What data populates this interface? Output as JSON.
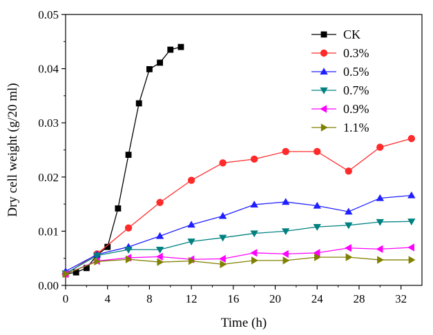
{
  "chart_data": {
    "type": "line",
    "title": "",
    "xlabel": "Time (h)",
    "ylabel": "Dry cell weight (g/20 ml)",
    "xlim": [
      0,
      34
    ],
    "ylim": [
      0,
      0.05
    ],
    "xticks": [
      0,
      4,
      8,
      12,
      16,
      20,
      24,
      28,
      32
    ],
    "xtick_labels": [
      "0",
      "4",
      "8",
      "12",
      "16",
      "20",
      "24",
      "28",
      "32"
    ],
    "yticks": [
      0,
      0.01,
      0.02,
      0.03,
      0.04,
      0.05
    ],
    "ytick_labels": [
      "0.00",
      "0.01",
      "0.02",
      "0.03",
      "0.04",
      "0.05"
    ],
    "legend_position": "top-right",
    "grid": false,
    "series": [
      {
        "name": "CK",
        "color": "#000000",
        "marker": "square",
        "x": [
          0,
          1,
          2,
          3,
          4,
          5,
          6,
          7,
          8,
          9,
          10,
          11
        ],
        "y": [
          0.0021,
          0.0024,
          0.0032,
          0.0056,
          0.0071,
          0.0142,
          0.0241,
          0.0336,
          0.0399,
          0.0411,
          0.0435,
          0.044
        ]
      },
      {
        "name": "0.3%",
        "color": "#ff2a2a",
        "marker": "circle",
        "x": [
          0,
          3,
          6,
          9,
          12,
          15,
          18,
          21,
          24,
          27,
          30,
          33
        ],
        "y": [
          0.0021,
          0.0058,
          0.0106,
          0.0153,
          0.0194,
          0.0226,
          0.0233,
          0.0247,
          0.0247,
          0.0211,
          0.0255,
          0.0271
        ]
      },
      {
        "name": "0.5%",
        "color": "#1f1fff",
        "marker": "triangle-up",
        "x": [
          0,
          3,
          6,
          9,
          12,
          15,
          18,
          21,
          24,
          27,
          30,
          33
        ],
        "y": [
          0.0026,
          0.0057,
          0.0071,
          0.0091,
          0.0112,
          0.0128,
          0.0149,
          0.0154,
          0.0147,
          0.0136,
          0.0161,
          0.0166
        ]
      },
      {
        "name": "0.7%",
        "color": "#008080",
        "marker": "triangle-down",
        "x": [
          0,
          3,
          6,
          9,
          12,
          15,
          18,
          21,
          24,
          27,
          30,
          33
        ],
        "y": [
          0.0022,
          0.0055,
          0.0066,
          0.0066,
          0.0081,
          0.0088,
          0.0096,
          0.01,
          0.0108,
          0.0111,
          0.0117,
          0.0118
        ]
      },
      {
        "name": "0.9%",
        "color": "#ff00ff",
        "marker": "triangle-left",
        "x": [
          0,
          3,
          6,
          9,
          12,
          15,
          18,
          21,
          24,
          27,
          30,
          33
        ],
        "y": [
          0.0021,
          0.0045,
          0.0051,
          0.0053,
          0.0048,
          0.0049,
          0.006,
          0.0058,
          0.006,
          0.0069,
          0.0067,
          0.007
        ]
      },
      {
        "name": "1.1%",
        "color": "#808000",
        "marker": "triangle-right",
        "x": [
          0,
          3,
          6,
          9,
          12,
          15,
          18,
          21,
          24,
          27,
          30,
          33
        ],
        "y": [
          0.0021,
          0.0044,
          0.0048,
          0.0043,
          0.0045,
          0.0039,
          0.0046,
          0.0046,
          0.0052,
          0.0052,
          0.0047,
          0.0047
        ]
      }
    ]
  }
}
